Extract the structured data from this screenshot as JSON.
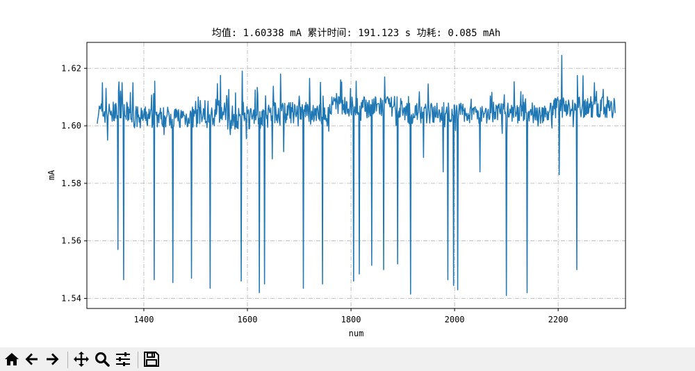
{
  "chart_data": {
    "type": "line",
    "title": "均值: 1.60338 mA 累计时间: 191.123 s 功耗: 0.085 mAh",
    "xlabel": "num",
    "ylabel": "mA",
    "xlim": [
      1290,
      2330
    ],
    "ylim": [
      1.5365,
      1.629
    ],
    "xticks": [
      1400,
      1600,
      1800,
      2000,
      2200
    ],
    "xtick_labels": [
      "1400",
      "1600",
      "1800",
      "2000",
      "2200"
    ],
    "yticks": [
      1.54,
      1.56,
      1.58,
      1.6,
      1.62
    ],
    "ytick_labels": [
      "1.54",
      "1.56",
      "1.58",
      "1.60",
      "1.62"
    ],
    "grid": true,
    "line_color": "#1f77b4",
    "x_start": 1310,
    "x_end": 2310,
    "baseline": 1.6045,
    "spikes_down": [
      [
        1350,
        1.557
      ],
      [
        1361,
        1.5465
      ],
      [
        1420,
        1.5465
      ],
      [
        1456,
        1.5455
      ],
      [
        1492,
        1.547
      ],
      [
        1528,
        1.5435
      ],
      [
        1588,
        1.546
      ],
      [
        1623,
        1.542
      ],
      [
        1633,
        1.545
      ],
      [
        1708,
        1.5435
      ],
      [
        1745,
        1.545
      ],
      [
        1805,
        1.546
      ],
      [
        1816,
        1.5485
      ],
      [
        1840,
        1.5515
      ],
      [
        1863,
        1.55
      ],
      [
        1890,
        1.552
      ],
      [
        1915,
        1.5415
      ],
      [
        1987,
        1.5465
      ],
      [
        1998,
        1.5445
      ],
      [
        2006,
        1.543
      ],
      [
        2100,
        1.541
      ],
      [
        2140,
        1.542
      ],
      [
        2236,
        1.55
      ],
      [
        2202,
        1.583
      ],
      [
        1978,
        1.584
      ],
      [
        2049,
        1.584
      ],
      [
        1940,
        1.589
      ],
      [
        1648,
        1.5885
      ],
      [
        1598,
        1.5955
      ],
      [
        1330,
        1.595
      ],
      [
        1670,
        1.591
      ],
      [
        1890,
        1.552
      ]
    ],
    "spikes_up": [
      [
        1590,
        1.619
      ],
      [
        1664,
        1.618
      ],
      [
        1548,
        1.6175
      ],
      [
        1421,
        1.6155
      ],
      [
        2207,
        1.6245
      ],
      [
        2237,
        1.6175
      ],
      [
        1720,
        1.6165
      ],
      [
        1780,
        1.616
      ],
      [
        1810,
        1.6155
      ],
      [
        1865,
        1.617
      ],
      [
        1320,
        1.615
      ],
      [
        2270,
        1.615
      ]
    ],
    "noise_seed": 7
  },
  "toolbar": {
    "buttons": [
      "home-icon",
      "back-icon",
      "forward-icon",
      "pan-icon",
      "zoom-icon",
      "configure-subplots-icon",
      "save-icon"
    ]
  }
}
